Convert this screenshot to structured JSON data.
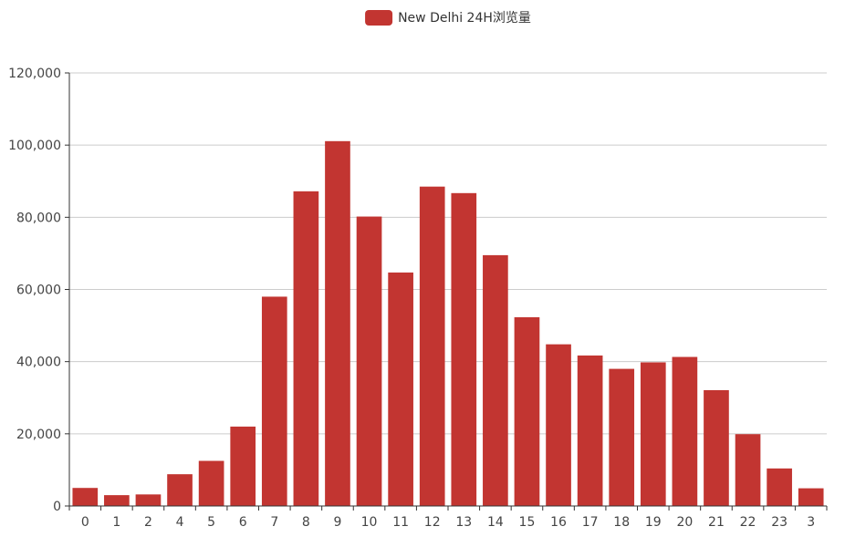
{
  "colors": {
    "bar": "#c23531",
    "grid": "#cccccc",
    "axis": "#333333",
    "text": "#444444",
    "background": "#ffffff"
  },
  "legend": {
    "label": "New Delhi 24H浏览量",
    "placement": "top-center",
    "icon": "rounded-rect-swatch"
  },
  "chart_data": {
    "type": "bar",
    "title": "",
    "xlabel": "",
    "ylabel": "",
    "categories": [
      "0",
      "1",
      "2",
      "4",
      "5",
      "6",
      "7",
      "8",
      "9",
      "10",
      "11",
      "12",
      "13",
      "14",
      "15",
      "16",
      "17",
      "18",
      "19",
      "20",
      "21",
      "22",
      "23",
      "3"
    ],
    "series": [
      {
        "name": "New Delhi 24H浏览量",
        "values": [
          5000,
          3000,
          3200,
          8800,
          12500,
          22000,
          58000,
          87200,
          101100,
          80200,
          64700,
          88500,
          86700,
          69500,
          52300,
          44800,
          41700,
          38000,
          39800,
          41300,
          32100,
          19900,
          10400,
          4900
        ]
      }
    ],
    "ylim": [
      0,
      120000
    ],
    "yticks": [
      "0",
      "20,000",
      "40,000",
      "60,000",
      "80,000",
      "100,000",
      "120,000"
    ],
    "grid": true
  }
}
